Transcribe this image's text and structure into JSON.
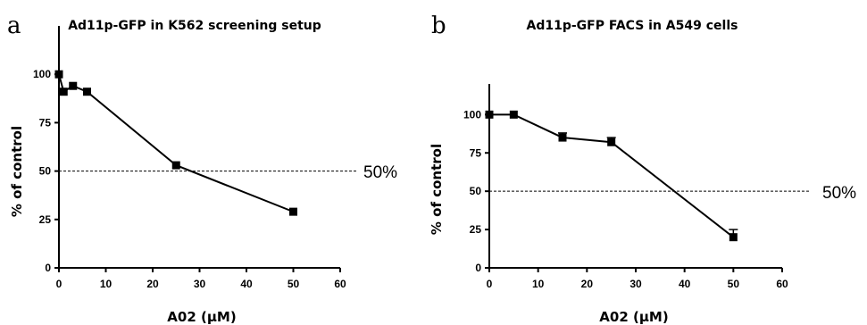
{
  "chart_data": [
    {
      "type": "line",
      "panel_label": "a",
      "title": "Ad11p-GFP in K562 screening setup",
      "xlabel": "A02 (µM)",
      "ylabel": "% of control",
      "xlim": [
        0,
        60
      ],
      "ylim": [
        0,
        125
      ],
      "xticks": [
        0,
        10,
        20,
        30,
        40,
        50,
        60
      ],
      "yticks": [
        0,
        25,
        50,
        75,
        100
      ],
      "marker": "square",
      "grid": false,
      "series": [
        {
          "x": [
            0,
            1,
            3,
            6,
            25,
            50
          ],
          "y": [
            100,
            91,
            94,
            91,
            53,
            29
          ],
          "err": [
            0,
            0,
            0,
            0,
            0,
            0
          ]
        }
      ],
      "reference_line": {
        "y": 50,
        "style": "dashed",
        "label": "50%"
      }
    },
    {
      "type": "line",
      "panel_label": "b",
      "title": "Ad11p-GFP FACS in A549 cells",
      "xlabel": "A02 (µM)",
      "ylabel": "% of control",
      "xlim": [
        0,
        60
      ],
      "ylim": [
        0,
        120
      ],
      "xticks": [
        0,
        10,
        20,
        30,
        40,
        50,
        60
      ],
      "yticks": [
        0,
        25,
        50,
        75,
        100
      ],
      "marker": "square",
      "grid": false,
      "series": [
        {
          "x": [
            0,
            5,
            15,
            25,
            50
          ],
          "y": [
            100,
            100,
            85,
            82,
            20
          ],
          "err": [
            0,
            0,
            3,
            3,
            5
          ]
        }
      ],
      "reference_line": {
        "y": 50,
        "style": "dashed",
        "label": "50%"
      }
    }
  ]
}
